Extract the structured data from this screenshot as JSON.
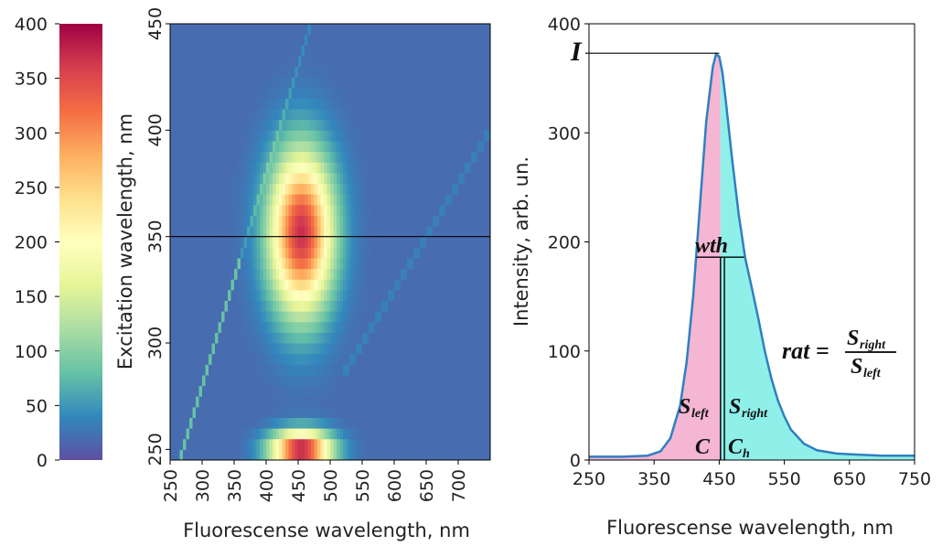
{
  "chart_data": [
    {
      "type": "colorbar",
      "ticks": [
        "0",
        "50",
        "100",
        "150",
        "200",
        "250",
        "300",
        "350",
        "400"
      ],
      "range": [
        0,
        400
      ],
      "colormap": "Spectral_r"
    },
    {
      "type": "heatmap",
      "xlabel": "Fluorescense wavelength, nm",
      "ylabel": "Excitation wavelength, nm",
      "xlim": [
        250,
        750
      ],
      "ylim": [
        245,
        450
      ],
      "x_ticks": [
        "250",
        "300",
        "350",
        "400",
        "450",
        "500",
        "550",
        "600",
        "650",
        "700"
      ],
      "y_ticks": [
        "250",
        "300",
        "350",
        "400",
        "450"
      ],
      "horizontal_line_y": 350,
      "peaks": [
        {
          "em": 455,
          "ex": 352,
          "value": 370
        },
        {
          "em": 455,
          "ex": 250,
          "value": 400
        }
      ],
      "background_value": 20,
      "grid": false
    },
    {
      "type": "line",
      "xlabel": "Fluorescense wavelength, nm",
      "ylabel": "Intensity, arb. un.",
      "xlim": [
        250,
        750
      ],
      "ylim": [
        0,
        400
      ],
      "x_ticks": [
        "250",
        "350",
        "450",
        "550",
        "650",
        "750"
      ],
      "y_ticks": [
        "0",
        "100",
        "200",
        "300",
        "400"
      ],
      "series": [
        {
          "x": [
            250,
            300,
            340,
            360,
            375,
            390,
            400,
            410,
            420,
            430,
            440,
            445,
            450,
            455,
            460,
            470,
            480,
            490,
            500,
            510,
            520,
            530,
            540,
            550,
            560,
            580,
            600,
            630,
            660,
            700,
            750
          ],
          "y": [
            3,
            3,
            4,
            8,
            20,
            50,
            90,
            150,
            230,
            310,
            360,
            372,
            370,
            355,
            330,
            275,
            225,
            185,
            158,
            130,
            100,
            75,
            55,
            40,
            28,
            15,
            9,
            6,
            5,
            4,
            4
          ]
        }
      ],
      "peak_x": 450,
      "peak_y": 373,
      "center_x": 452,
      "ch_x": 458,
      "half_width_range": [
        415,
        488
      ],
      "half_height_y": 186,
      "fill_left_color": "#f4b6d2",
      "fill_right_color": "#8ef0e8",
      "line_color": "#2f7fc1",
      "annotations": {
        "I": "I",
        "wth": "wth",
        "C": "C",
        "Ch_main": "C",
        "Ch_sub": "h",
        "S_left_main": "S",
        "S_left_sub": "left",
        "S_right_main": "S",
        "S_right_sub": "right",
        "rat": "rat ="
      },
      "grid": false
    }
  ]
}
